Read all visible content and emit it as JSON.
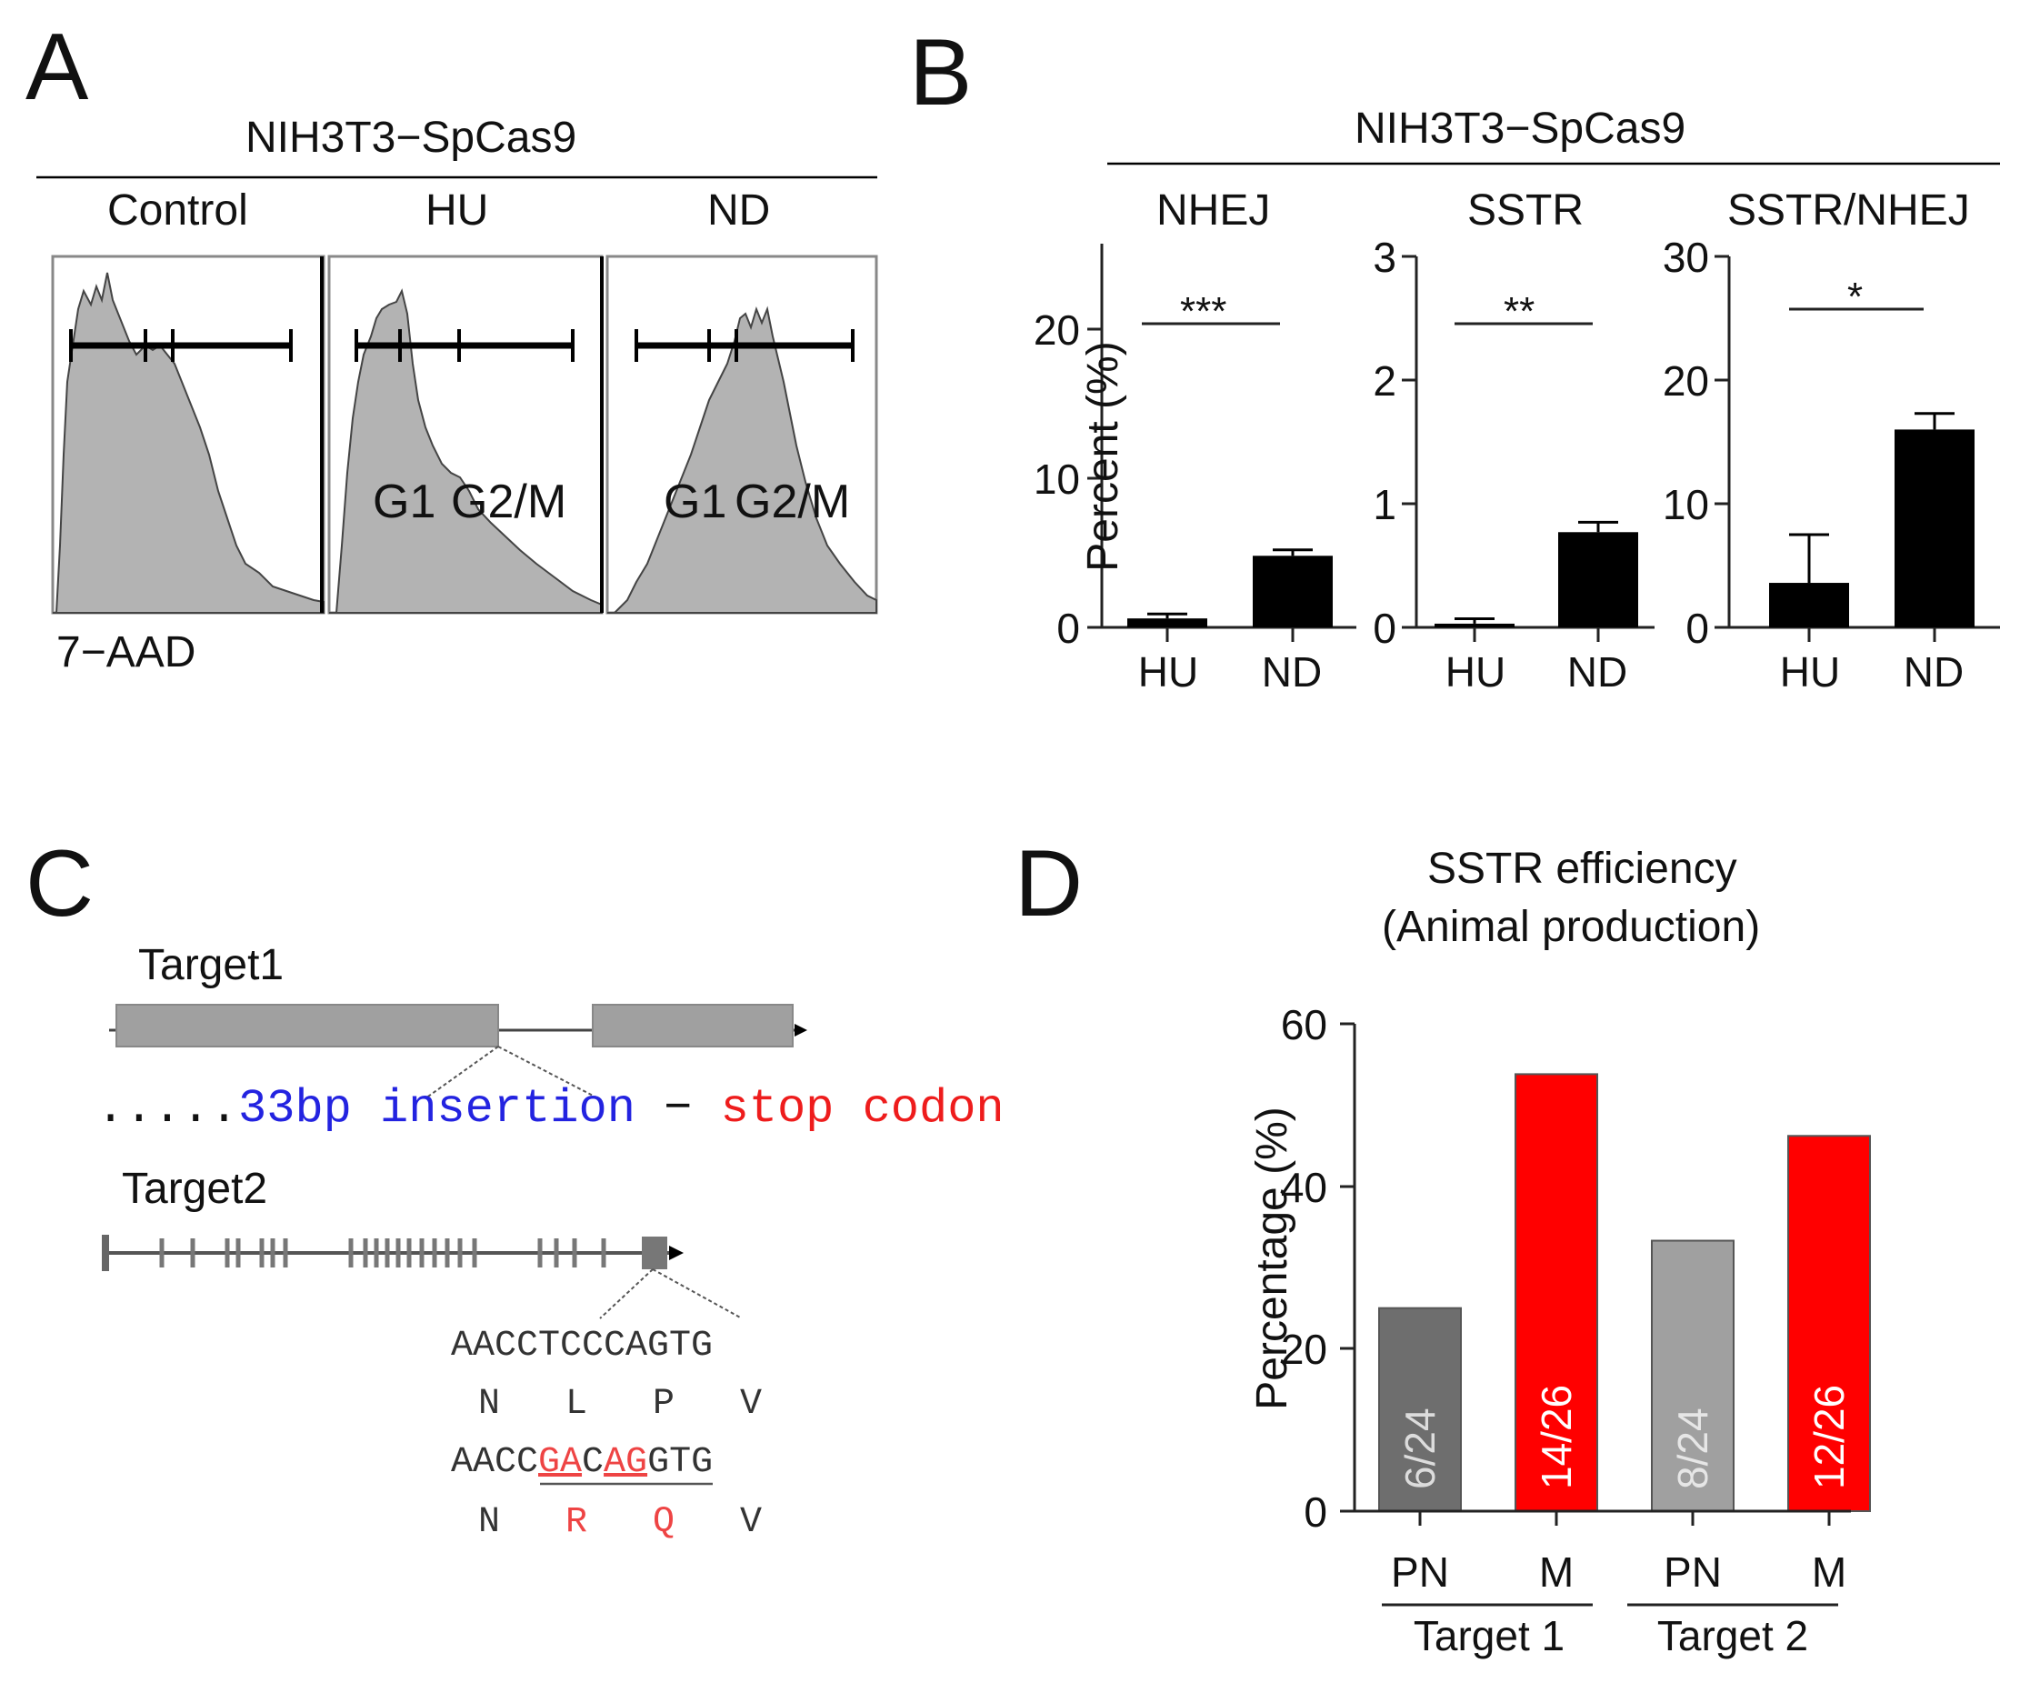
{
  "panelA": {
    "letter": "A",
    "title": "NIH3T3−SpCas9",
    "columns": [
      "Control",
      "HU",
      "ND"
    ],
    "gate_labels": {
      "g1": "G1",
      "g2m": "G2/M"
    },
    "axis_label": "7−AAD"
  },
  "panelB": {
    "letter": "B",
    "title": "NIH3T3−SpCas9",
    "ylabel": "Percent (%)",
    "subplots": [
      {
        "title": "NHEJ",
        "ticks": [
          "0",
          "10",
          "20"
        ],
        "sig": "***"
      },
      {
        "title": "SSTR",
        "ticks": [
          "0",
          "1",
          "2",
          "3"
        ],
        "sig": "**"
      },
      {
        "title": "SSTR/NHEJ",
        "ticks": [
          "0",
          "10",
          "20",
          "30"
        ],
        "sig": "*"
      }
    ]
  },
  "panelC": {
    "letter": "C",
    "target1": "Target1",
    "target2": "Target2",
    "dots": ".....",
    "insertion": "33bp insertion",
    "dash": "−",
    "stop": "stop codon",
    "seq_wt": "AACCTCCCAGTG",
    "aa_wt": [
      "N",
      "L",
      "P",
      "V"
    ],
    "seq_mut": {
      "a": "AACC",
      "b": "GA",
      "c": "C",
      "d": "AG",
      "e": "GTG"
    },
    "aa_mut": [
      "N",
      "R",
      "Q",
      "V"
    ],
    "colors": {
      "insertion": "#2323e0",
      "stop": "#ee1c1c",
      "mut": "#ee4444"
    }
  },
  "panelD": {
    "letter": "D",
    "title_line1": "SSTR efficiency",
    "title_line2": "(Animal production)",
    "ylabel": "Percentage (%)",
    "ticks": [
      "0",
      "20",
      "40",
      "60"
    ],
    "groups": [
      "Target 1",
      "Target 2"
    ]
  },
  "chart_data": [
    {
      "type": "bar",
      "title": "NHEJ",
      "categories": [
        "HU",
        "ND"
      ],
      "values": [
        0.6,
        4.8
      ],
      "errors": [
        0.3,
        0.4
      ],
      "ylabel": "Percent (%)",
      "ylim": [
        0,
        25
      ],
      "colors": [
        "#000000",
        "#000000"
      ],
      "significance": "***"
    },
    {
      "type": "bar",
      "title": "SSTR",
      "categories": [
        "HU",
        "ND"
      ],
      "values": [
        0.03,
        0.77
      ],
      "errors": [
        0.04,
        0.08
      ],
      "ylabel": "",
      "ylim": [
        0,
        3
      ],
      "colors": [
        "#000000",
        "#000000"
      ],
      "significance": "**"
    },
    {
      "type": "bar",
      "title": "SSTR/NHEJ",
      "categories": [
        "HU",
        "ND"
      ],
      "values": [
        3.6,
        16.0
      ],
      "errors": [
        3.9,
        1.3
      ],
      "ylabel": "",
      "ylim": [
        0,
        30
      ],
      "colors": [
        "#000000",
        "#000000"
      ],
      "significance": "*"
    },
    {
      "type": "bar",
      "title": "SSTR efficiency (Animal production)",
      "categories": [
        "PN",
        "M",
        "PN",
        "M"
      ],
      "groups": [
        "Target 1",
        "Target 1",
        "Target 2",
        "Target 2"
      ],
      "values": [
        25,
        53.8,
        33.3,
        46.2
      ],
      "bar_labels": [
        "6/24",
        "14/26",
        "8/24",
        "12/26"
      ],
      "ylabel": "Percentage (%)",
      "ylim": [
        0,
        60
      ],
      "colors": [
        "#6e6e6e",
        "#ff0000",
        "#a0a0a0",
        "#ff0000"
      ]
    }
  ]
}
